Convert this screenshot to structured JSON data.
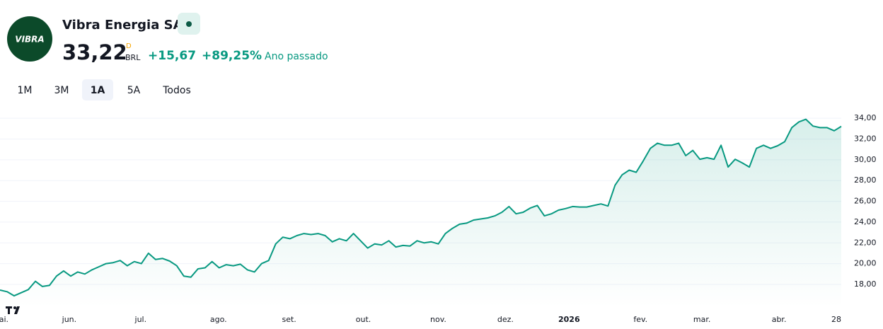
{
  "header": {
    "logo": "VIBRA",
    "name": "Vibra Energia SA",
    "price": "33,22",
    "flag": "D",
    "currency": "BRL",
    "change": "+15,67",
    "change_pct": "+89,25%",
    "period": "Ano passado"
  },
  "ranges": [
    "1M",
    "3M",
    "1A",
    "5A",
    "Todos"
  ],
  "selected_range": 2,
  "chart_data": {
    "type": "line",
    "series": [
      {
        "color": "#089981",
        "values": [
          17.45,
          17.3,
          16.9,
          17.2,
          17.5,
          18.3,
          17.8,
          17.9,
          18.8,
          19.3,
          18.8,
          19.2,
          19.0,
          19.4,
          19.7,
          20.0,
          20.1,
          20.3,
          19.8,
          20.2,
          20.0,
          21.0,
          20.4,
          20.5,
          20.25,
          19.8,
          18.8,
          18.7,
          19.5,
          19.6,
          20.2,
          19.6,
          19.9,
          19.8,
          19.95,
          19.4,
          19.2,
          20.0,
          20.3,
          21.9,
          22.55,
          22.4,
          22.7,
          22.9,
          22.8,
          22.9,
          22.7,
          22.1,
          22.4,
          22.2,
          22.9,
          22.2,
          21.5,
          21.9,
          21.8,
          22.2,
          21.6,
          21.75,
          21.7,
          22.2,
          22.0,
          22.1,
          21.9,
          22.9,
          23.4,
          23.8,
          23.9,
          24.2,
          24.3,
          24.4,
          24.6,
          24.95,
          25.5,
          24.8,
          24.95,
          25.35,
          25.6,
          24.6,
          24.8,
          25.15,
          25.3,
          25.5,
          25.45,
          25.45,
          25.6,
          25.75,
          25.55,
          27.55,
          28.55,
          29.0,
          28.8,
          29.9,
          31.1,
          31.6,
          31.4,
          31.4,
          31.6,
          30.4,
          30.9,
          30.05,
          30.2,
          30.05,
          31.4,
          29.3,
          30.05,
          29.7,
          29.3,
          31.1,
          31.4,
          31.1,
          31.35,
          31.75,
          33.1,
          33.65,
          33.9,
          33.25,
          33.1,
          33.1,
          32.8,
          33.22
        ]
      }
    ],
    "xlim": [
      0,
      119
    ],
    "xticks": [
      {
        "value": 0,
        "label": "mai."
      },
      {
        "value": 9.8,
        "label": "jun."
      },
      {
        "value": 19.9,
        "label": "jul."
      },
      {
        "value": 30.9,
        "label": "ago."
      },
      {
        "value": 40.9,
        "label": "set."
      },
      {
        "value": 51.4,
        "label": "out."
      },
      {
        "value": 62.0,
        "label": "nov."
      },
      {
        "value": 71.5,
        "label": "dez."
      },
      {
        "value": 80.5,
        "label": "2026"
      },
      {
        "value": 90.6,
        "label": "fev."
      },
      {
        "value": 99.3,
        "label": "mar."
      },
      {
        "value": 110.2,
        "label": "abr."
      },
      {
        "value": 118.3,
        "label": "28"
      }
    ],
    "ylim": [
      15.75,
      35.85
    ],
    "yticks": [
      {
        "value": 18,
        "label": "18,00"
      },
      {
        "value": 20,
        "label": "20,00"
      },
      {
        "value": 22,
        "label": "22,00"
      },
      {
        "value": 24,
        "label": "24,00"
      },
      {
        "value": 26,
        "label": "26,00"
      },
      {
        "value": 28,
        "label": "28,00"
      },
      {
        "value": 30,
        "label": "30,00"
      },
      {
        "value": 32,
        "label": "32,00"
      },
      {
        "value": 34,
        "label": "34,00"
      }
    ],
    "grid": true
  }
}
